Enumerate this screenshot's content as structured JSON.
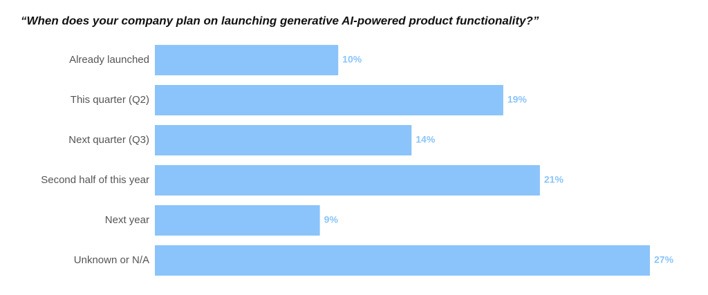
{
  "chart_data": {
    "type": "hbar",
    "title": "“When does your company plan on launching generative AI-powered product functionality?”",
    "categories": [
      "Already launched",
      "This quarter (Q2)",
      "Next quarter (Q3)",
      "Second half of this year",
      "Next year",
      "Unknown or N/A"
    ],
    "values": [
      10,
      19,
      14,
      21,
      9,
      27
    ],
    "value_labels": [
      "10%",
      "19%",
      "14%",
      "21%",
      "9%",
      "27%"
    ],
    "color": "#8ac4fa"
  }
}
